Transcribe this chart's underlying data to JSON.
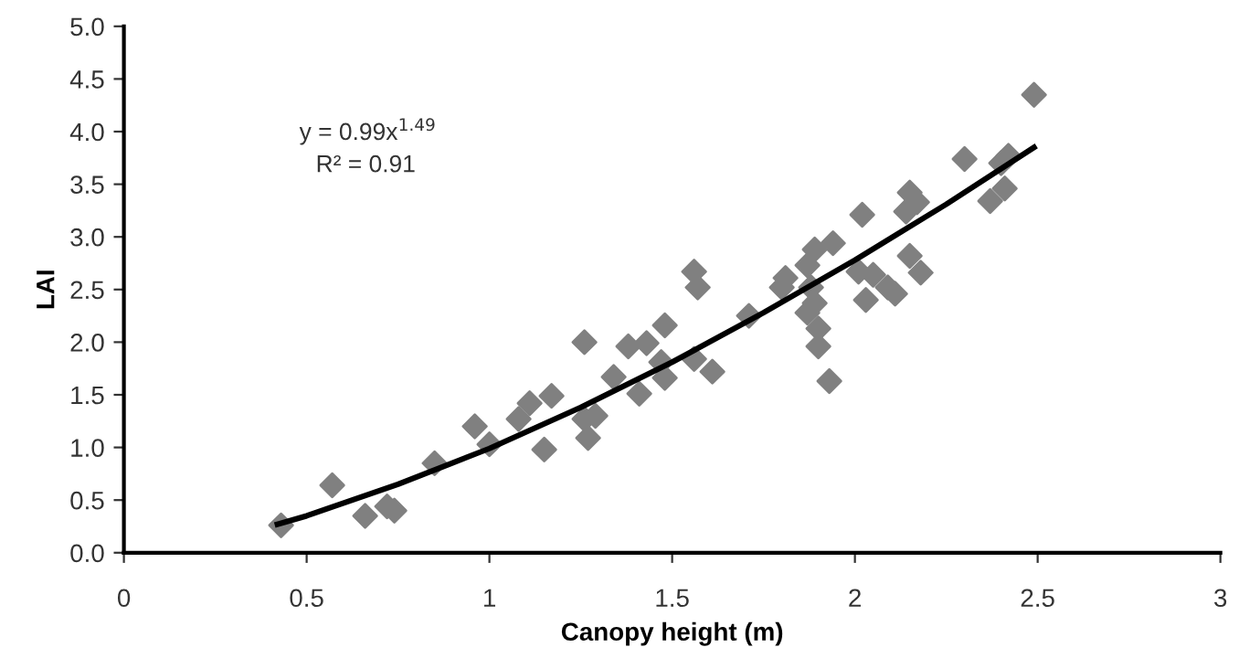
{
  "chart_data": {
    "type": "scatter",
    "xlabel": "Canopy height (m)",
    "ylabel": "LAI",
    "xlim": [
      0,
      3
    ],
    "xticks": [
      0,
      0.5,
      1,
      1.5,
      2,
      2.5,
      3
    ],
    "ylim": [
      0,
      5
    ],
    "yticks": [
      {
        "value": 0,
        "label": "0.0"
      },
      {
        "value": 0.5,
        "label": "0.5"
      },
      {
        "value": 1,
        "label": "1.0"
      },
      {
        "value": 1.5,
        "label": "1.5"
      },
      {
        "value": 2,
        "label": "2.0"
      },
      {
        "value": 2.5,
        "label": "2.5"
      },
      {
        "value": 3,
        "label": "3.0"
      },
      {
        "value": 3.5,
        "label": "3.5"
      },
      {
        "value": 4,
        "label": "4.0"
      },
      {
        "value": 4.5,
        "label": "4.5"
      },
      {
        "value": 5,
        "label": "5.0"
      }
    ],
    "grid": false,
    "legend": false,
    "annotations": [
      "y = 0.99x$^{1.49}$",
      "R² = 0.91"
    ],
    "series": [
      {
        "color": "#808080",
        "marker": "diamond",
        "x": [
          0.43,
          0.57,
          0.66,
          0.72,
          0.74,
          0.85,
          0.96,
          1.0,
          1.08,
          1.11,
          1.15,
          1.17,
          1.26,
          1.26,
          1.27,
          1.29,
          1.34,
          1.38,
          1.41,
          1.43,
          1.47,
          1.48,
          1.48,
          1.56,
          1.57,
          1.56,
          1.61,
          1.71,
          1.8,
          1.81,
          1.87,
          1.89,
          1.94,
          1.88,
          1.89,
          1.87,
          1.9,
          1.9,
          1.93,
          2.02,
          2.01,
          2.05,
          2.03,
          2.09,
          2.11,
          2.14,
          2.15,
          2.17,
          2.15,
          2.18,
          2.3,
          2.37,
          2.41,
          2.4,
          2.42,
          2.49
        ],
        "values": [
          0.26,
          0.64,
          0.35,
          0.44,
          0.4,
          0.85,
          1.2,
          1.03,
          1.27,
          1.42,
          0.98,
          1.49,
          2.0,
          1.27,
          1.09,
          1.3,
          1.67,
          1.96,
          1.51,
          1.99,
          1.81,
          2.16,
          1.66,
          2.67,
          2.52,
          1.84,
          1.72,
          2.25,
          2.52,
          2.61,
          2.73,
          2.88,
          2.94,
          2.52,
          2.37,
          2.28,
          2.13,
          1.96,
          1.63,
          3.21,
          2.67,
          2.64,
          2.4,
          2.52,
          2.46,
          3.24,
          3.42,
          3.33,
          2.82,
          2.66,
          3.74,
          3.34,
          3.46,
          3.7,
          3.77,
          4.35
        ]
      },
      {
        "type": "line",
        "color": "#000000",
        "marker": "none",
        "line_style": "solid",
        "x": [
          0.42,
          0.5,
          0.75,
          1.0,
          1.25,
          1.5,
          1.75,
          2.0,
          2.25,
          2.49
        ],
        "values": [
          0.27,
          0.35,
          0.65,
          0.99,
          1.38,
          1.81,
          2.28,
          2.78,
          3.31,
          3.85
        ]
      }
    ]
  }
}
